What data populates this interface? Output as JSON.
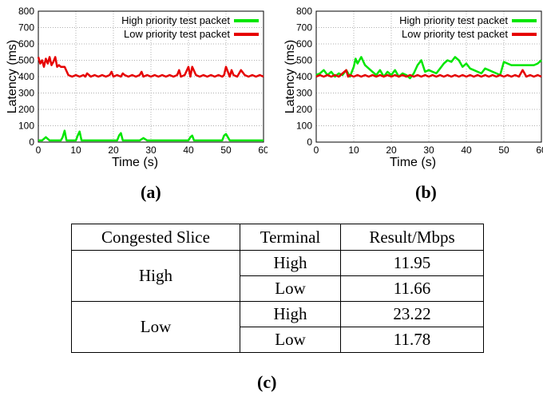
{
  "figures": {
    "caption_a": "(a)",
    "caption_b": "(b)",
    "caption_c": "(c)"
  },
  "chart_data": [
    {
      "type": "line",
      "xlabel": "Time (s)",
      "ylabel": "Latency (ms)",
      "xlim": [
        0,
        60
      ],
      "ylim": [
        0,
        800
      ],
      "xticks": [
        0,
        10,
        20,
        30,
        40,
        50,
        60
      ],
      "yticks": [
        0,
        100,
        200,
        300,
        400,
        500,
        600,
        700,
        800
      ],
      "legend_position": "top-right",
      "series": [
        {
          "name": "High priority test packet",
          "color": "#00e600",
          "x": [
            0,
            1,
            2,
            3,
            4,
            5,
            6,
            6.5,
            7,
            7.5,
            8,
            9,
            10,
            10.5,
            11,
            11.5,
            12,
            13,
            14,
            15,
            16,
            17,
            18,
            19,
            20,
            21,
            21.5,
            22,
            22.5,
            23,
            24,
            25,
            26,
            27,
            28,
            29,
            30,
            31,
            32,
            33,
            34,
            35,
            36,
            37,
            38,
            39,
            40,
            40.5,
            41,
            41.5,
            42,
            43,
            44,
            45,
            46,
            47,
            48,
            49,
            49.5,
            50,
            51,
            52,
            53,
            54,
            55,
            56,
            57,
            58,
            59,
            60
          ],
          "values": [
            10,
            10,
            30,
            10,
            10,
            10,
            10,
            30,
            70,
            10,
            10,
            10,
            10,
            40,
            65,
            10,
            10,
            10,
            10,
            10,
            10,
            10,
            10,
            10,
            10,
            10,
            40,
            55,
            10,
            10,
            10,
            10,
            10,
            10,
            25,
            10,
            10,
            10,
            10,
            10,
            10,
            10,
            10,
            10,
            10,
            10,
            10,
            30,
            40,
            10,
            10,
            10,
            10,
            10,
            10,
            10,
            10,
            10,
            40,
            50,
            10,
            10,
            10,
            10,
            10,
            10,
            10,
            10,
            10,
            10
          ]
        },
        {
          "name": "Low priority test packet",
          "color": "#e60000",
          "x": [
            0,
            0.5,
            1,
            1.5,
            2,
            2.5,
            3,
            3.5,
            4,
            4.5,
            5,
            5.5,
            6,
            7,
            8,
            9,
            10,
            11,
            12,
            12.5,
            13,
            14,
            15,
            16,
            17,
            18,
            19,
            19.5,
            20,
            21,
            22,
            22.5,
            23,
            24,
            25,
            26,
            27,
            27.5,
            28,
            29,
            30,
            31,
            32,
            33,
            34,
            35,
            36,
            37,
            37.5,
            38,
            39,
            40,
            40.5,
            41,
            42,
            43,
            44,
            45,
            46,
            47,
            48,
            49,
            49.5,
            50,
            51,
            51.5,
            52,
            53,
            54,
            55,
            56,
            57,
            58,
            59,
            60
          ],
          "values": [
            520,
            480,
            500,
            460,
            510,
            480,
            520,
            470,
            490,
            520,
            460,
            470,
            460,
            460,
            410,
            400,
            410,
            400,
            410,
            400,
            420,
            400,
            410,
            400,
            410,
            400,
            410,
            430,
            400,
            410,
            400,
            420,
            410,
            400,
            410,
            400,
            410,
            430,
            400,
            410,
            400,
            410,
            400,
            410,
            400,
            410,
            400,
            410,
            440,
            400,
            410,
            460,
            400,
            460,
            410,
            400,
            410,
            400,
            410,
            400,
            410,
            400,
            410,
            460,
            400,
            440,
            410,
            400,
            440,
            410,
            400,
            410,
            400,
            410,
            400
          ]
        }
      ]
    },
    {
      "type": "line",
      "xlabel": "Time (s)",
      "ylabel": "Latency (ms)",
      "xlim": [
        0,
        60
      ],
      "ylim": [
        0,
        800
      ],
      "xticks": [
        0,
        10,
        20,
        30,
        40,
        50,
        60
      ],
      "yticks": [
        0,
        100,
        200,
        300,
        400,
        500,
        600,
        700,
        800
      ],
      "legend_position": "top-right",
      "series": [
        {
          "name": "High priority test packet",
          "color": "#00e600",
          "x": [
            0,
            1,
            2,
            3,
            4,
            5,
            6,
            7,
            8,
            9,
            10,
            10.5,
            11,
            12,
            13,
            14,
            15,
            16,
            17,
            18,
            19,
            20,
            21,
            22,
            23,
            24,
            25,
            26,
            27,
            28,
            29,
            30,
            31,
            32,
            33,
            34,
            35,
            36,
            37,
            38,
            39,
            40,
            41,
            42,
            43,
            44,
            45,
            46,
            47,
            48,
            49,
            50,
            51,
            52,
            53,
            54,
            55,
            56,
            57,
            58,
            59,
            60
          ],
          "values": [
            410,
            420,
            440,
            410,
            430,
            400,
            420,
            410,
            440,
            400,
            460,
            510,
            480,
            520,
            470,
            450,
            430,
            410,
            440,
            400,
            430,
            410,
            440,
            400,
            420,
            410,
            390,
            420,
            470,
            500,
            430,
            440,
            430,
            420,
            450,
            480,
            500,
            490,
            520,
            500,
            460,
            480,
            450,
            440,
            430,
            420,
            450,
            440,
            430,
            420,
            410,
            490,
            480,
            470,
            470,
            470,
            470,
            470,
            470,
            470,
            480,
            500
          ]
        },
        {
          "name": "Low priority test packet",
          "color": "#e60000",
          "x": [
            0,
            1,
            2,
            3,
            4,
            5,
            6,
            7,
            8,
            8.5,
            9,
            10,
            11,
            12,
            13,
            14,
            15,
            16,
            17,
            18,
            19,
            20,
            21,
            22,
            23,
            24,
            25,
            26,
            27,
            28,
            29,
            30,
            31,
            32,
            33,
            34,
            35,
            36,
            37,
            38,
            39,
            40,
            41,
            42,
            43,
            44,
            45,
            46,
            47,
            48,
            49,
            50,
            51,
            52,
            53,
            54,
            55,
            56,
            57,
            58,
            59,
            60
          ],
          "values": [
            400,
            410,
            400,
            410,
            400,
            410,
            400,
            420,
            440,
            400,
            410,
            400,
            410,
            400,
            410,
            400,
            410,
            400,
            410,
            400,
            410,
            400,
            410,
            400,
            410,
            400,
            410,
            400,
            410,
            400,
            410,
            400,
            410,
            400,
            410,
            400,
            410,
            400,
            410,
            400,
            410,
            400,
            410,
            400,
            410,
            400,
            410,
            400,
            410,
            400,
            410,
            400,
            410,
            400,
            410,
            400,
            440,
            400,
            410,
            400,
            410,
            400
          ]
        }
      ]
    },
    {
      "type": "table",
      "headers": [
        "Congested Slice",
        "Terminal",
        "Result/Mbps"
      ],
      "rows": [
        {
          "slice": "High",
          "terminal": "High",
          "result": "11.95"
        },
        {
          "slice": "",
          "terminal": "Low",
          "result": "11.66"
        },
        {
          "slice": "Low",
          "terminal": "High",
          "result": "23.22"
        },
        {
          "slice": "",
          "terminal": "Low",
          "result": "11.78"
        }
      ]
    }
  ]
}
